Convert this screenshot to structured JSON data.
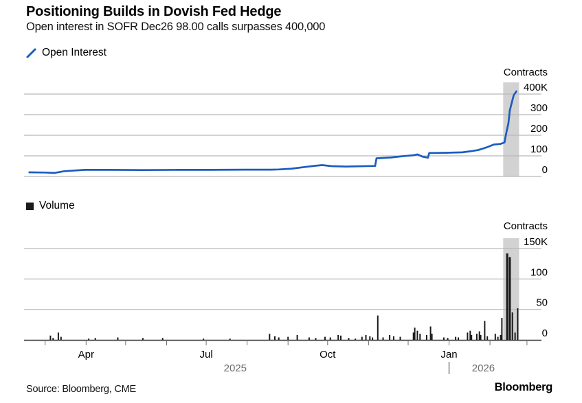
{
  "header": {
    "title": "Positioning Builds in Dovish Fed Hedge",
    "subtitle": "Open interest in SOFR Dec26 98.00 calls surpasses 400,000"
  },
  "legends": {
    "open_interest": "Open Interest",
    "volume": "Volume"
  },
  "footer": {
    "source": "Source: Bloomberg, CME",
    "logo": "Bloomberg"
  },
  "colors": {
    "line": "#1a5cc0",
    "bar": "#1a1a1a",
    "grid": "#b8b8b8",
    "axis": "#6e6e6e",
    "band": "#d2d2d2",
    "label": "#000000",
    "year_label": "#6b6b6b"
  },
  "x_axis": {
    "domain": [
      "2025-02-13",
      "2026-03-12"
    ],
    "month_ticks": [
      {
        "date": "2025-03-01"
      },
      {
        "date": "2025-04-01",
        "label": "Apr"
      },
      {
        "date": "2025-05-01"
      },
      {
        "date": "2025-06-01"
      },
      {
        "date": "2025-07-01",
        "label": "Jul"
      },
      {
        "date": "2025-08-01"
      },
      {
        "date": "2025-09-01"
      },
      {
        "date": "2025-10-01",
        "label": "Oct"
      },
      {
        "date": "2025-11-01"
      },
      {
        "date": "2025-12-01"
      },
      {
        "date": "2026-01-01",
        "label": "Jan"
      },
      {
        "date": "2026-02-01"
      },
      {
        "date": "2026-03-01"
      }
    ],
    "year_labels": [
      {
        "date": "2025-07-23",
        "label": "2025"
      },
      {
        "date": "2026-01-27",
        "label": "2026"
      }
    ],
    "year_divider": "2026-01-01"
  },
  "chart_data": [
    {
      "type": "line",
      "series_name": "Open Interest",
      "unit_label": "Contracts",
      "units": "thousands of contracts",
      "ylim": [
        0,
        400
      ],
      "y_ticks": [
        {
          "v": 0,
          "label": "0"
        },
        {
          "v": 100,
          "label": "100"
        },
        {
          "v": 200,
          "label": "200"
        },
        {
          "v": 300,
          "label": "300"
        },
        {
          "v": 400,
          "label": "400K"
        }
      ],
      "highlight_band": {
        "from": "2026-02-11",
        "to": "2026-02-23"
      },
      "points": [
        [
          "2025-02-17",
          20
        ],
        [
          "2025-03-01",
          19
        ],
        [
          "2025-03-08",
          17
        ],
        [
          "2025-03-14",
          24
        ],
        [
          "2025-03-17",
          26
        ],
        [
          "2025-03-31",
          32
        ],
        [
          "2025-04-19",
          32
        ],
        [
          "2025-05-14",
          31
        ],
        [
          "2025-06-09",
          32
        ],
        [
          "2025-07-04",
          32
        ],
        [
          "2025-07-30",
          33
        ],
        [
          "2025-08-19",
          33
        ],
        [
          "2025-08-25",
          34
        ],
        [
          "2025-09-04",
          38
        ],
        [
          "2025-09-14",
          46
        ],
        [
          "2025-09-22",
          52
        ],
        [
          "2025-09-27",
          55
        ],
        [
          "2025-10-04",
          50
        ],
        [
          "2025-10-15",
          48
        ],
        [
          "2025-11-06",
          51
        ],
        [
          "2025-11-07",
          88
        ],
        [
          "2025-11-18",
          92
        ],
        [
          "2025-11-28",
          99
        ],
        [
          "2025-12-05",
          103
        ],
        [
          "2025-12-08",
          107
        ],
        [
          "2025-12-12",
          96
        ],
        [
          "2025-12-16",
          91
        ],
        [
          "2025-12-17",
          114
        ],
        [
          "2025-12-30",
          115
        ],
        [
          "2026-01-11",
          117
        ],
        [
          "2026-01-17",
          122
        ],
        [
          "2026-01-23",
          128
        ],
        [
          "2026-01-29",
          140
        ],
        [
          "2026-02-04",
          155
        ],
        [
          "2026-02-09",
          158
        ],
        [
          "2026-02-12",
          165
        ],
        [
          "2026-02-13",
          200
        ],
        [
          "2026-02-15",
          260
        ],
        [
          "2026-02-16",
          320
        ],
        [
          "2026-02-18",
          370
        ],
        [
          "2026-02-19",
          395
        ],
        [
          "2026-02-21",
          413
        ]
      ]
    },
    {
      "type": "bar",
      "series_name": "Volume",
      "unit_label": "Contracts",
      "units": "thousands of contracts",
      "ylim": [
        0,
        150
      ],
      "y_ticks": [
        {
          "v": 0,
          "label": "0"
        },
        {
          "v": 50,
          "label": "50"
        },
        {
          "v": 100,
          "label": "100"
        },
        {
          "v": 150,
          "label": "150K"
        }
      ],
      "highlight_band": {
        "from": "2026-02-11",
        "to": "2026-02-23"
      },
      "bars": [
        [
          "2025-03-05",
          7
        ],
        [
          "2025-03-07",
          3
        ],
        [
          "2025-03-11",
          12
        ],
        [
          "2025-03-13",
          5
        ],
        [
          "2025-04-03",
          2
        ],
        [
          "2025-04-08",
          3
        ],
        [
          "2025-04-25",
          4
        ],
        [
          "2025-05-14",
          3
        ],
        [
          "2025-05-29",
          3
        ],
        [
          "2025-06-29",
          2
        ],
        [
          "2025-07-19",
          2
        ],
        [
          "2025-08-18",
          10
        ],
        [
          "2025-08-22",
          6
        ],
        [
          "2025-08-25",
          4
        ],
        [
          "2025-09-01",
          5
        ],
        [
          "2025-09-08",
          8
        ],
        [
          "2025-09-17",
          4
        ],
        [
          "2025-09-22",
          3
        ],
        [
          "2025-09-29",
          5
        ],
        [
          "2025-10-03",
          4
        ],
        [
          "2025-10-09",
          8
        ],
        [
          "2025-10-11",
          7
        ],
        [
          "2025-10-17",
          3
        ],
        [
          "2025-10-22",
          2
        ],
        [
          "2025-10-27",
          5
        ],
        [
          "2025-10-30",
          8
        ],
        [
          "2025-11-02",
          6
        ],
        [
          "2025-11-04",
          4
        ],
        [
          "2025-11-08",
          40
        ],
        [
          "2025-11-12",
          4
        ],
        [
          "2025-11-17",
          8
        ],
        [
          "2025-11-20",
          6
        ],
        [
          "2025-11-25",
          5
        ],
        [
          "2025-12-05",
          12
        ],
        [
          "2025-12-06",
          20
        ],
        [
          "2025-12-08",
          15
        ],
        [
          "2025-12-10",
          10
        ],
        [
          "2025-12-15",
          8
        ],
        [
          "2025-12-18",
          22
        ],
        [
          "2025-12-19",
          10
        ],
        [
          "2025-12-28",
          4
        ],
        [
          "2025-12-31",
          3
        ],
        [
          "2026-01-06",
          5
        ],
        [
          "2026-01-08",
          4
        ],
        [
          "2026-01-15",
          12
        ],
        [
          "2026-01-17",
          15
        ],
        [
          "2026-01-18",
          8
        ],
        [
          "2026-01-22",
          10
        ],
        [
          "2026-01-24",
          14
        ],
        [
          "2026-01-25",
          8
        ],
        [
          "2026-01-28",
          31
        ],
        [
          "2026-01-30",
          6
        ],
        [
          "2026-02-05",
          10
        ],
        [
          "2026-02-07",
          5
        ],
        [
          "2026-02-09",
          8
        ],
        [
          "2026-02-10",
          36
        ],
        [
          "2026-02-14",
          142
        ],
        [
          "2026-02-16",
          136
        ],
        [
          "2026-02-18",
          45
        ],
        [
          "2026-02-20",
          12
        ],
        [
          "2026-02-22",
          52
        ]
      ]
    }
  ]
}
